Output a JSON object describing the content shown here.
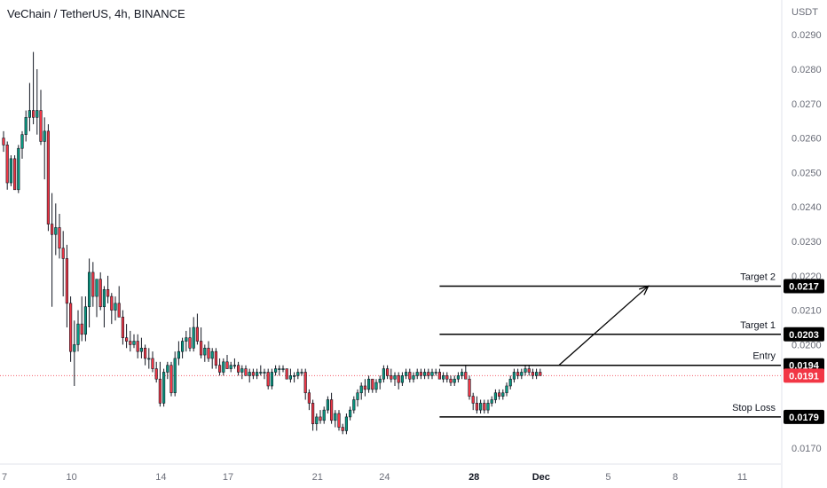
{
  "chart_data": {
    "type": "candlestick",
    "title": "VeChain / TetherUS, 4h, BINANCE",
    "currency": "USDT",
    "ylim": [
      0.0163,
      0.0297
    ],
    "y_ticks": [
      "0.0170",
      "0.0200",
      "0.0210",
      "0.0220",
      "0.0230",
      "0.0240",
      "0.0250",
      "0.0260",
      "0.0270",
      "0.0280",
      "0.0290"
    ],
    "x_ticks": [
      {
        "label": "7",
        "bar": 0,
        "bold": false
      },
      {
        "label": "10",
        "bar": 18,
        "bold": false
      },
      {
        "label": "14",
        "bar": 42,
        "bold": false
      },
      {
        "label": "17",
        "bar": 60,
        "bold": false
      },
      {
        "label": "21",
        "bar": 84,
        "bold": false
      },
      {
        "label": "24",
        "bar": 102,
        "bold": false
      },
      {
        "label": "28",
        "bar": 126,
        "bold": true
      },
      {
        "label": "Dec",
        "bar": 144,
        "bold": true
      },
      {
        "label": "5",
        "bar": 162,
        "bold": false
      },
      {
        "label": "8",
        "bar": 180,
        "bold": false
      },
      {
        "label": "11",
        "bar": 198,
        "bold": false
      }
    ],
    "last_price": {
      "value": 0.0191,
      "label": "0.0191",
      "color": "#f23645"
    },
    "levels": [
      {
        "name": "Target 2",
        "value": 0.0217,
        "label": "0.0217",
        "start_bar": 117
      },
      {
        "name": "Target 1",
        "value": 0.0203,
        "label": "0.0203",
        "start_bar": 117
      },
      {
        "name": "Entry",
        "value": 0.0194,
        "label": "0.0194",
        "start_bar": 117
      },
      {
        "name": "Stop Loss",
        "value": 0.0179,
        "label": "0.0179",
        "start_bar": 117
      }
    ],
    "arrow": {
      "from_bar": 149,
      "from_value": 0.0194,
      "to_bar": 173,
      "to_value": 0.0217
    },
    "colors": {
      "up": "#089981",
      "down": "#f23645",
      "wick": "#131722",
      "text": "#131722",
      "axis_text": "#6a6d78",
      "level_line": "#000000",
      "label_bg": "#000000",
      "label_text": "#ffffff"
    },
    "bars": [
      [
        0.026,
        0.0262,
        0.0256,
        0.0258
      ],
      [
        0.0258,
        0.0259,
        0.0245,
        0.0247
      ],
      [
        0.0247,
        0.0255,
        0.0246,
        0.0254
      ],
      [
        0.0254,
        0.0255,
        0.0245,
        0.0245
      ],
      [
        0.0245,
        0.0258,
        0.0244,
        0.0257
      ],
      [
        0.0257,
        0.0262,
        0.0254,
        0.0261
      ],
      [
        0.0261,
        0.0268,
        0.0259,
        0.0266
      ],
      [
        0.0266,
        0.0276,
        0.0262,
        0.0268
      ],
      [
        0.0268,
        0.0285,
        0.0264,
        0.0266
      ],
      [
        0.0266,
        0.028,
        0.0261,
        0.0268
      ],
      [
        0.0268,
        0.0274,
        0.0258,
        0.0259
      ],
      [
        0.0259,
        0.0266,
        0.0248,
        0.0262
      ],
      [
        0.0262,
        0.0264,
        0.0233,
        0.0235
      ],
      [
        0.0235,
        0.0244,
        0.0211,
        0.0232
      ],
      [
        0.0232,
        0.0241,
        0.0226,
        0.0234
      ],
      [
        0.0234,
        0.0238,
        0.0225,
        0.0228
      ],
      [
        0.0228,
        0.0233,
        0.0214,
        0.0225
      ],
      [
        0.0225,
        0.0229,
        0.0205,
        0.0212
      ],
      [
        0.0212,
        0.0214,
        0.0195,
        0.0198
      ],
      [
        0.0198,
        0.0207,
        0.0188,
        0.02
      ],
      [
        0.02,
        0.021,
        0.0198,
        0.0206
      ],
      [
        0.0206,
        0.0214,
        0.0201,
        0.0203
      ],
      [
        0.0203,
        0.0214,
        0.0201,
        0.0211
      ],
      [
        0.0211,
        0.0225,
        0.0205,
        0.0221
      ],
      [
        0.0221,
        0.0224,
        0.0211,
        0.0214
      ],
      [
        0.0214,
        0.0219,
        0.0208,
        0.0219
      ],
      [
        0.0219,
        0.0221,
        0.021,
        0.0211
      ],
      [
        0.0211,
        0.0217,
        0.0205,
        0.0216
      ],
      [
        0.0216,
        0.022,
        0.0212,
        0.0214
      ],
      [
        0.0214,
        0.0215,
        0.0206,
        0.021
      ],
      [
        0.021,
        0.0214,
        0.0207,
        0.0212
      ],
      [
        0.0212,
        0.0217,
        0.0208,
        0.0208
      ],
      [
        0.0208,
        0.021,
        0.02,
        0.0202
      ],
      [
        0.0202,
        0.0206,
        0.0199,
        0.0201
      ],
      [
        0.0201,
        0.0204,
        0.0198,
        0.02
      ],
      [
        0.02,
        0.0203,
        0.0199,
        0.0201
      ],
      [
        0.0201,
        0.0203,
        0.0196,
        0.0198
      ],
      [
        0.0198,
        0.0202,
        0.0196,
        0.0199
      ],
      [
        0.0199,
        0.02,
        0.0194,
        0.0196
      ],
      [
        0.0196,
        0.0199,
        0.0193,
        0.0196
      ],
      [
        0.0196,
        0.0198,
        0.0192,
        0.0193
      ],
      [
        0.0193,
        0.0195,
        0.0189,
        0.019
      ],
      [
        0.019,
        0.0195,
        0.0182,
        0.0183
      ],
      [
        0.0183,
        0.0193,
        0.0182,
        0.0192
      ],
      [
        0.0192,
        0.0195,
        0.019,
        0.0194
      ],
      [
        0.0194,
        0.0195,
        0.0185,
        0.0186
      ],
      [
        0.0186,
        0.0198,
        0.0185,
        0.0196
      ],
      [
        0.0196,
        0.0201,
        0.0194,
        0.0198
      ],
      [
        0.0198,
        0.0202,
        0.0196,
        0.0201
      ],
      [
        0.0201,
        0.0204,
        0.0198,
        0.0202
      ],
      [
        0.0202,
        0.0205,
        0.0198,
        0.0199
      ],
      [
        0.0199,
        0.0208,
        0.0198,
        0.0205
      ],
      [
        0.0205,
        0.0209,
        0.02,
        0.0201
      ],
      [
        0.0201,
        0.0205,
        0.0196,
        0.0197
      ],
      [
        0.0197,
        0.02,
        0.0195,
        0.0199
      ],
      [
        0.0199,
        0.0201,
        0.0195,
        0.0196
      ],
      [
        0.0196,
        0.0199,
        0.0193,
        0.0198
      ],
      [
        0.0198,
        0.0199,
        0.0193,
        0.0194
      ],
      [
        0.0194,
        0.0196,
        0.0191,
        0.0192
      ],
      [
        0.0192,
        0.0196,
        0.0191,
        0.0195
      ],
      [
        0.0195,
        0.0197,
        0.0193,
        0.0193
      ],
      [
        0.0193,
        0.0195,
        0.0192,
        0.0194
      ],
      [
        0.0194,
        0.0196,
        0.0193,
        0.0194
      ],
      [
        0.0194,
        0.0195,
        0.0191,
        0.0192
      ],
      [
        0.0192,
        0.0194,
        0.019,
        0.0193
      ],
      [
        0.0193,
        0.0194,
        0.0191,
        0.0191
      ],
      [
        0.0191,
        0.0193,
        0.0189,
        0.0192
      ],
      [
        0.0192,
        0.0193,
        0.019,
        0.0191
      ],
      [
        0.0191,
        0.0193,
        0.019,
        0.0192
      ],
      [
        0.0192,
        0.0194,
        0.0191,
        0.0192
      ],
      [
        0.0192,
        0.0193,
        0.019,
        0.0192
      ],
      [
        0.0192,
        0.0193,
        0.0187,
        0.0188
      ],
      [
        0.0188,
        0.0193,
        0.0187,
        0.0192
      ],
      [
        0.0192,
        0.0194,
        0.0191,
        0.0193
      ],
      [
        0.0193,
        0.0194,
        0.0191,
        0.0193
      ],
      [
        0.0193,
        0.0194,
        0.0192,
        0.0193
      ],
      [
        0.0193,
        0.0193,
        0.019,
        0.019
      ],
      [
        0.019,
        0.0193,
        0.0189,
        0.0191
      ],
      [
        0.0191,
        0.0192,
        0.0189,
        0.0191
      ],
      [
        0.0191,
        0.0193,
        0.019,
        0.0192
      ],
      [
        0.0192,
        0.0193,
        0.0191,
        0.0192
      ],
      [
        0.0192,
        0.0193,
        0.0184,
        0.0186
      ],
      [
        0.0186,
        0.0187,
        0.0181,
        0.0183
      ],
      [
        0.0183,
        0.0184,
        0.0175,
        0.0177
      ],
      [
        0.0177,
        0.018,
        0.0175,
        0.0179
      ],
      [
        0.0179,
        0.0181,
        0.0177,
        0.0178
      ],
      [
        0.0178,
        0.0182,
        0.0177,
        0.0181
      ],
      [
        0.0181,
        0.0185,
        0.018,
        0.0184
      ],
      [
        0.0184,
        0.0186,
        0.0177,
        0.0178
      ],
      [
        0.0178,
        0.0181,
        0.0176,
        0.018
      ],
      [
        0.018,
        0.0181,
        0.0175,
        0.0176
      ],
      [
        0.0176,
        0.0177,
        0.0174,
        0.0175
      ],
      [
        0.0175,
        0.018,
        0.0174,
        0.0179
      ],
      [
        0.0179,
        0.0182,
        0.0178,
        0.0181
      ],
      [
        0.0181,
        0.0185,
        0.018,
        0.0184
      ],
      [
        0.0184,
        0.0187,
        0.0182,
        0.0186
      ],
      [
        0.0186,
        0.0189,
        0.0184,
        0.0188
      ],
      [
        0.0188,
        0.019,
        0.0185,
        0.0187
      ],
      [
        0.0187,
        0.0191,
        0.0186,
        0.019
      ],
      [
        0.019,
        0.019,
        0.0186,
        0.0187
      ],
      [
        0.0187,
        0.019,
        0.0186,
        0.0189
      ],
      [
        0.0189,
        0.0191,
        0.0187,
        0.019
      ],
      [
        0.019,
        0.0194,
        0.0189,
        0.0193
      ],
      [
        0.0193,
        0.0194,
        0.019,
        0.0191
      ],
      [
        0.0191,
        0.0193,
        0.0189,
        0.019
      ],
      [
        0.019,
        0.0192,
        0.0188,
        0.0191
      ],
      [
        0.0191,
        0.0192,
        0.0187,
        0.0189
      ],
      [
        0.0189,
        0.0192,
        0.0188,
        0.0191
      ],
      [
        0.0191,
        0.0193,
        0.019,
        0.0192
      ],
      [
        0.0192,
        0.0193,
        0.0189,
        0.019
      ],
      [
        0.019,
        0.0192,
        0.0189,
        0.0191
      ],
      [
        0.0191,
        0.0193,
        0.019,
        0.0192
      ],
      [
        0.0192,
        0.0193,
        0.019,
        0.0191
      ],
      [
        0.0191,
        0.0193,
        0.019,
        0.0192
      ],
      [
        0.0192,
        0.0193,
        0.019,
        0.0191
      ],
      [
        0.0191,
        0.0193,
        0.019,
        0.0192
      ],
      [
        0.0192,
        0.0193,
        0.0191,
        0.0192
      ],
      [
        0.0192,
        0.0193,
        0.019,
        0.019
      ],
      [
        0.019,
        0.0192,
        0.0189,
        0.0191
      ],
      [
        0.0191,
        0.0192,
        0.0189,
        0.019
      ],
      [
        0.019,
        0.0191,
        0.0188,
        0.0189
      ],
      [
        0.0189,
        0.0191,
        0.0188,
        0.019
      ],
      [
        0.019,
        0.0192,
        0.0189,
        0.0191
      ],
      [
        0.0191,
        0.0193,
        0.019,
        0.0192
      ],
      [
        0.0192,
        0.0194,
        0.019,
        0.019
      ],
      [
        0.019,
        0.0191,
        0.0184,
        0.0185
      ],
      [
        0.0185,
        0.0186,
        0.0181,
        0.0183
      ],
      [
        0.0183,
        0.0185,
        0.018,
        0.0181
      ],
      [
        0.0181,
        0.0184,
        0.018,
        0.0183
      ],
      [
        0.0183,
        0.0184,
        0.018,
        0.0181
      ],
      [
        0.0181,
        0.0184,
        0.018,
        0.0183
      ],
      [
        0.0183,
        0.0185,
        0.0182,
        0.0184
      ],
      [
        0.0184,
        0.0187,
        0.0183,
        0.0186
      ],
      [
        0.0186,
        0.0187,
        0.0184,
        0.0185
      ],
      [
        0.0185,
        0.0187,
        0.0184,
        0.0186
      ],
      [
        0.0186,
        0.0189,
        0.0185,
        0.0188
      ],
      [
        0.0188,
        0.0191,
        0.0187,
        0.019
      ],
      [
        0.019,
        0.0193,
        0.0189,
        0.0192
      ],
      [
        0.0192,
        0.0193,
        0.019,
        0.0191
      ],
      [
        0.0191,
        0.0193,
        0.019,
        0.0192
      ],
      [
        0.0192,
        0.0194,
        0.0191,
        0.0193
      ],
      [
        0.0193,
        0.0194,
        0.0191,
        0.0192
      ],
      [
        0.0192,
        0.0193,
        0.019,
        0.0191
      ],
      [
        0.0191,
        0.0193,
        0.019,
        0.0192
      ],
      [
        0.0192,
        0.0193,
        0.0191,
        0.0191
      ]
    ]
  }
}
